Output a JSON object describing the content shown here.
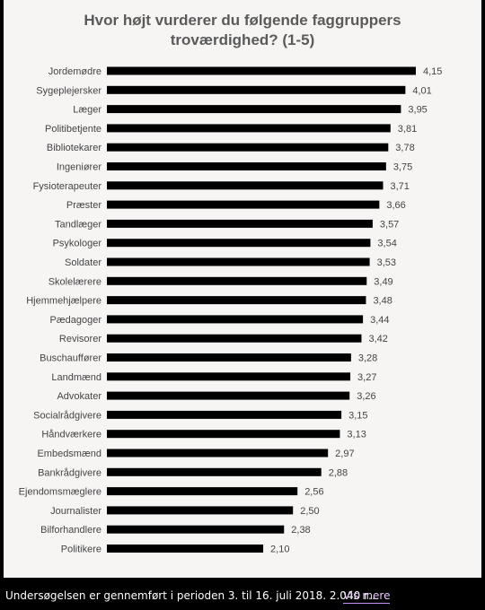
{
  "chart_data": {
    "type": "bar",
    "orientation": "horizontal",
    "title_lines": [
      "Hvor højt vurderer du følgende faggruppers",
      "troværdighed? (1-5)"
    ],
    "categories": [
      "Jordemødre",
      "Sygeplejersker",
      "Læger",
      "Politibetjente",
      "Bibliotekarer",
      "Ingeniører",
      "Fysioterapeuter",
      "Præster",
      "Tandlæger",
      "Psykologer",
      "Soldater",
      "Skolelærere",
      "Hjemmehjælpere",
      "Pædagoger",
      "Revisorer",
      "Buschauffører",
      "Landmænd",
      "Advokater",
      "Socialrådgivere",
      "Håndværkere",
      "Embedsmænd",
      "Bankrådgivere",
      "Ejendomsmæglere",
      "Journalister",
      "Bilforhandlere",
      "Politikere"
    ],
    "values": [
      4.15,
      4.01,
      3.95,
      3.81,
      3.78,
      3.75,
      3.71,
      3.66,
      3.57,
      3.54,
      3.53,
      3.49,
      3.48,
      3.44,
      3.42,
      3.28,
      3.27,
      3.26,
      3.15,
      3.13,
      2.97,
      2.88,
      2.56,
      2.5,
      2.38,
      2.1
    ],
    "value_labels": [
      "4,15",
      "4,01",
      "3,95",
      "3,81",
      "3,78",
      "3,75",
      "3,71",
      "3,66",
      "3,57",
      "3,54",
      "3,53",
      "3,49",
      "3,48",
      "3,44",
      "3,42",
      "3,28",
      "3,27",
      "3,26",
      "3,15",
      "3,13",
      "2,97",
      "2,88",
      "2,56",
      "2,50",
      "2,38",
      "2,10"
    ],
    "xlim": [
      0,
      4.4
    ],
    "bar_color": "#000000",
    "grid": false
  },
  "caption": {
    "text": "Undersøgelsen er gennemført i perioden 3. til 16. juli 2018. 2.040 r…",
    "link_label": "Vis mere"
  },
  "colors": {
    "panel_bg": "#f7f5f4",
    "title": "#5a5a5a",
    "label": "#444444",
    "link": "#e9c9ff"
  }
}
